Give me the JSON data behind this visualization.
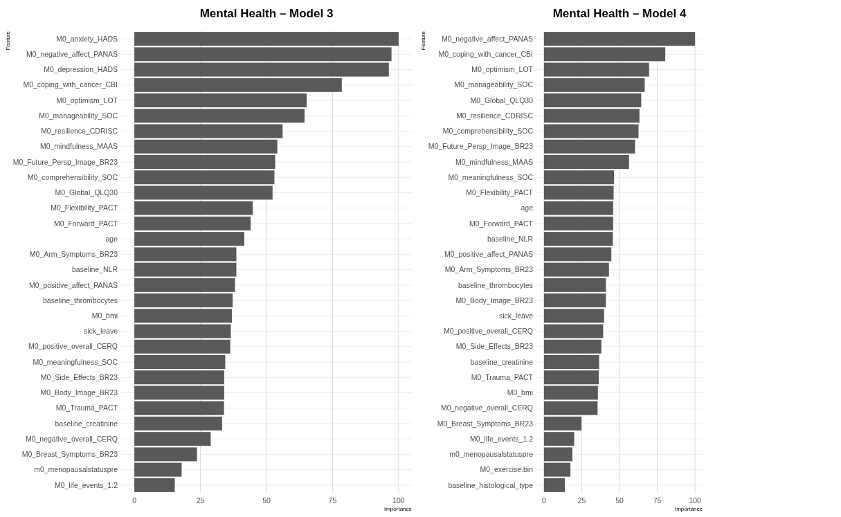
{
  "chart_data": [
    {
      "type": "bar",
      "orientation": "horizontal",
      "title": "Mental Health – Model 3",
      "xlabel": "Importance",
      "ylabel": "Feature",
      "color": "#595959",
      "grid": true,
      "xlim": [
        -5,
        105
      ],
      "xticks": [
        0,
        25,
        50,
        75,
        100
      ],
      "categories": [
        "M0_anxiety_HADS",
        "M0_negative_affect_PANAS",
        "M0_depression_HADS",
        "M0_coping_with_cancer_CBI",
        "M0_optimism_LOT",
        "M0_manageability_SOC",
        "M0_resilience_CDRISC",
        "M0_mindfulness_MAAS",
        "M0_Future_Persp_Image_BR23",
        "M0_comprehensibility_SOC",
        "M0_Global_QLQ30",
        "M0_Flexibility_PACT",
        "M0_Forward_PACT",
        "age",
        "M0_Arm_Symptoms_BR23",
        "baseline_NLR",
        "M0_positive_affect_PANAS",
        "baseline_thrombocytes",
        "M0_bmi",
        "sick_leave",
        "M0_positive_overall_CERQ",
        "M0_meaningfulness_SOC",
        "M0_Side_Effects_BR23",
        "M0_Body_Image_BR23",
        "M0_Trauma_PACT",
        "baseline_creatinine",
        "M0_negative_overall_CERQ",
        "M0_Breast_Symptoms_BR23",
        "m0_menopausalstatuspre",
        "M0_life_events_1.2"
      ],
      "values": [
        100,
        97.3,
        96.3,
        78.5,
        65.2,
        64.4,
        56.1,
        54.1,
        53.3,
        53.0,
        52.3,
        44.8,
        44.0,
        41.6,
        38.6,
        38.6,
        38.1,
        37.2,
        36.9,
        36.5,
        36.3,
        34.4,
        34.0,
        34.0,
        33.9,
        33.2,
        28.9,
        23.7,
        17.9,
        15.3
      ]
    },
    {
      "type": "bar",
      "orientation": "horizontal",
      "title": "Mental Health – Model 4",
      "xlabel": "Importance",
      "ylabel": "Feature",
      "color": "#595959",
      "grid": true,
      "xlim": [
        -5,
        105
      ],
      "xticks": [
        0,
        25,
        50,
        75,
        100
      ],
      "categories": [
        "M0_negative_affect_PANAS",
        "M0_coping_with_cancer_CBI",
        "M0_optimism_LOT",
        "M0_manageability_SOC",
        "M0_Global_QLQ30",
        "M0_resilience_CDRISC",
        "M0_comprehensibility_SOC",
        "M0_Future_Persp_Image_BR23",
        "M0_mindfulness_MAAS",
        "M0_meaningfulness_SOC",
        "M0_Flexibility_PACT",
        "age",
        "M0_Forward_PACT",
        "baseline_NLR",
        "M0_positive_affect_PANAS",
        "M0_Arm_Symptoms_BR23",
        "baseline_thrombocytes",
        "M0_Body_Image_BR23",
        "sick_leave",
        "M0_positive_overall_CERQ",
        "M0_Side_Effects_BR23",
        "baseline_creatinine",
        "M0_Trauma_PACT",
        "M0_bmi",
        "M0_negative_overall_CERQ",
        "M0_Breast_Symptoms_BR23",
        "M0_life_events_1.2",
        "m0_menopausalstatuspre",
        "M0_exercise.bin",
        "baseline_histological_type"
      ],
      "values": [
        100,
        80.3,
        69.6,
        66.7,
        64.4,
        63.2,
        62.6,
        60.3,
        56.3,
        46.4,
        46.1,
        45.8,
        45.8,
        45.6,
        44.6,
        43.0,
        41.0,
        41.0,
        39.8,
        39.2,
        38.0,
        36.5,
        36.3,
        35.7,
        35.5,
        24.8,
        20.0,
        18.8,
        17.5,
        13.8
      ]
    }
  ]
}
